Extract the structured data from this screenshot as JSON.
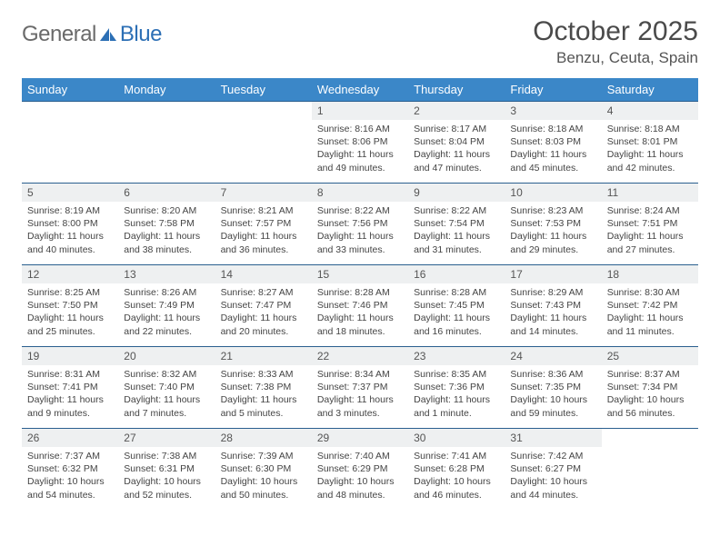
{
  "brand": {
    "word1": "General",
    "word2": "Blue"
  },
  "title": "October 2025",
  "location": "Benzu, Ceuta, Spain",
  "colors": {
    "header_bg": "#3b87c8",
    "header_text": "#ffffff",
    "row_divider": "#2a5f8f",
    "daynum_bg": "#eef0f1",
    "body_text": "#444444",
    "logo_gray": "#6a6a6a",
    "logo_blue": "#2c6fb5"
  },
  "day_names": [
    "Sunday",
    "Monday",
    "Tuesday",
    "Wednesday",
    "Thursday",
    "Friday",
    "Saturday"
  ],
  "weeks": [
    [
      null,
      null,
      null,
      {
        "n": "1",
        "sr": "8:16 AM",
        "ss": "8:06 PM",
        "dl": "11 hours and 49 minutes."
      },
      {
        "n": "2",
        "sr": "8:17 AM",
        "ss": "8:04 PM",
        "dl": "11 hours and 47 minutes."
      },
      {
        "n": "3",
        "sr": "8:18 AM",
        "ss": "8:03 PM",
        "dl": "11 hours and 45 minutes."
      },
      {
        "n": "4",
        "sr": "8:18 AM",
        "ss": "8:01 PM",
        "dl": "11 hours and 42 minutes."
      }
    ],
    [
      {
        "n": "5",
        "sr": "8:19 AM",
        "ss": "8:00 PM",
        "dl": "11 hours and 40 minutes."
      },
      {
        "n": "6",
        "sr": "8:20 AM",
        "ss": "7:58 PM",
        "dl": "11 hours and 38 minutes."
      },
      {
        "n": "7",
        "sr": "8:21 AM",
        "ss": "7:57 PM",
        "dl": "11 hours and 36 minutes."
      },
      {
        "n": "8",
        "sr": "8:22 AM",
        "ss": "7:56 PM",
        "dl": "11 hours and 33 minutes."
      },
      {
        "n": "9",
        "sr": "8:22 AM",
        "ss": "7:54 PM",
        "dl": "11 hours and 31 minutes."
      },
      {
        "n": "10",
        "sr": "8:23 AM",
        "ss": "7:53 PM",
        "dl": "11 hours and 29 minutes."
      },
      {
        "n": "11",
        "sr": "8:24 AM",
        "ss": "7:51 PM",
        "dl": "11 hours and 27 minutes."
      }
    ],
    [
      {
        "n": "12",
        "sr": "8:25 AM",
        "ss": "7:50 PM",
        "dl": "11 hours and 25 minutes."
      },
      {
        "n": "13",
        "sr": "8:26 AM",
        "ss": "7:49 PM",
        "dl": "11 hours and 22 minutes."
      },
      {
        "n": "14",
        "sr": "8:27 AM",
        "ss": "7:47 PM",
        "dl": "11 hours and 20 minutes."
      },
      {
        "n": "15",
        "sr": "8:28 AM",
        "ss": "7:46 PM",
        "dl": "11 hours and 18 minutes."
      },
      {
        "n": "16",
        "sr": "8:28 AM",
        "ss": "7:45 PM",
        "dl": "11 hours and 16 minutes."
      },
      {
        "n": "17",
        "sr": "8:29 AM",
        "ss": "7:43 PM",
        "dl": "11 hours and 14 minutes."
      },
      {
        "n": "18",
        "sr": "8:30 AM",
        "ss": "7:42 PM",
        "dl": "11 hours and 11 minutes."
      }
    ],
    [
      {
        "n": "19",
        "sr": "8:31 AM",
        "ss": "7:41 PM",
        "dl": "11 hours and 9 minutes."
      },
      {
        "n": "20",
        "sr": "8:32 AM",
        "ss": "7:40 PM",
        "dl": "11 hours and 7 minutes."
      },
      {
        "n": "21",
        "sr": "8:33 AM",
        "ss": "7:38 PM",
        "dl": "11 hours and 5 minutes."
      },
      {
        "n": "22",
        "sr": "8:34 AM",
        "ss": "7:37 PM",
        "dl": "11 hours and 3 minutes."
      },
      {
        "n": "23",
        "sr": "8:35 AM",
        "ss": "7:36 PM",
        "dl": "11 hours and 1 minute."
      },
      {
        "n": "24",
        "sr": "8:36 AM",
        "ss": "7:35 PM",
        "dl": "10 hours and 59 minutes."
      },
      {
        "n": "25",
        "sr": "8:37 AM",
        "ss": "7:34 PM",
        "dl": "10 hours and 56 minutes."
      }
    ],
    [
      {
        "n": "26",
        "sr": "7:37 AM",
        "ss": "6:32 PM",
        "dl": "10 hours and 54 minutes."
      },
      {
        "n": "27",
        "sr": "7:38 AM",
        "ss": "6:31 PM",
        "dl": "10 hours and 52 minutes."
      },
      {
        "n": "28",
        "sr": "7:39 AM",
        "ss": "6:30 PM",
        "dl": "10 hours and 50 minutes."
      },
      {
        "n": "29",
        "sr": "7:40 AM",
        "ss": "6:29 PM",
        "dl": "10 hours and 48 minutes."
      },
      {
        "n": "30",
        "sr": "7:41 AM",
        "ss": "6:28 PM",
        "dl": "10 hours and 46 minutes."
      },
      {
        "n": "31",
        "sr": "7:42 AM",
        "ss": "6:27 PM",
        "dl": "10 hours and 44 minutes."
      },
      null
    ]
  ],
  "labels": {
    "sunrise": "Sunrise: ",
    "sunset": "Sunset: ",
    "daylight": "Daylight: "
  }
}
